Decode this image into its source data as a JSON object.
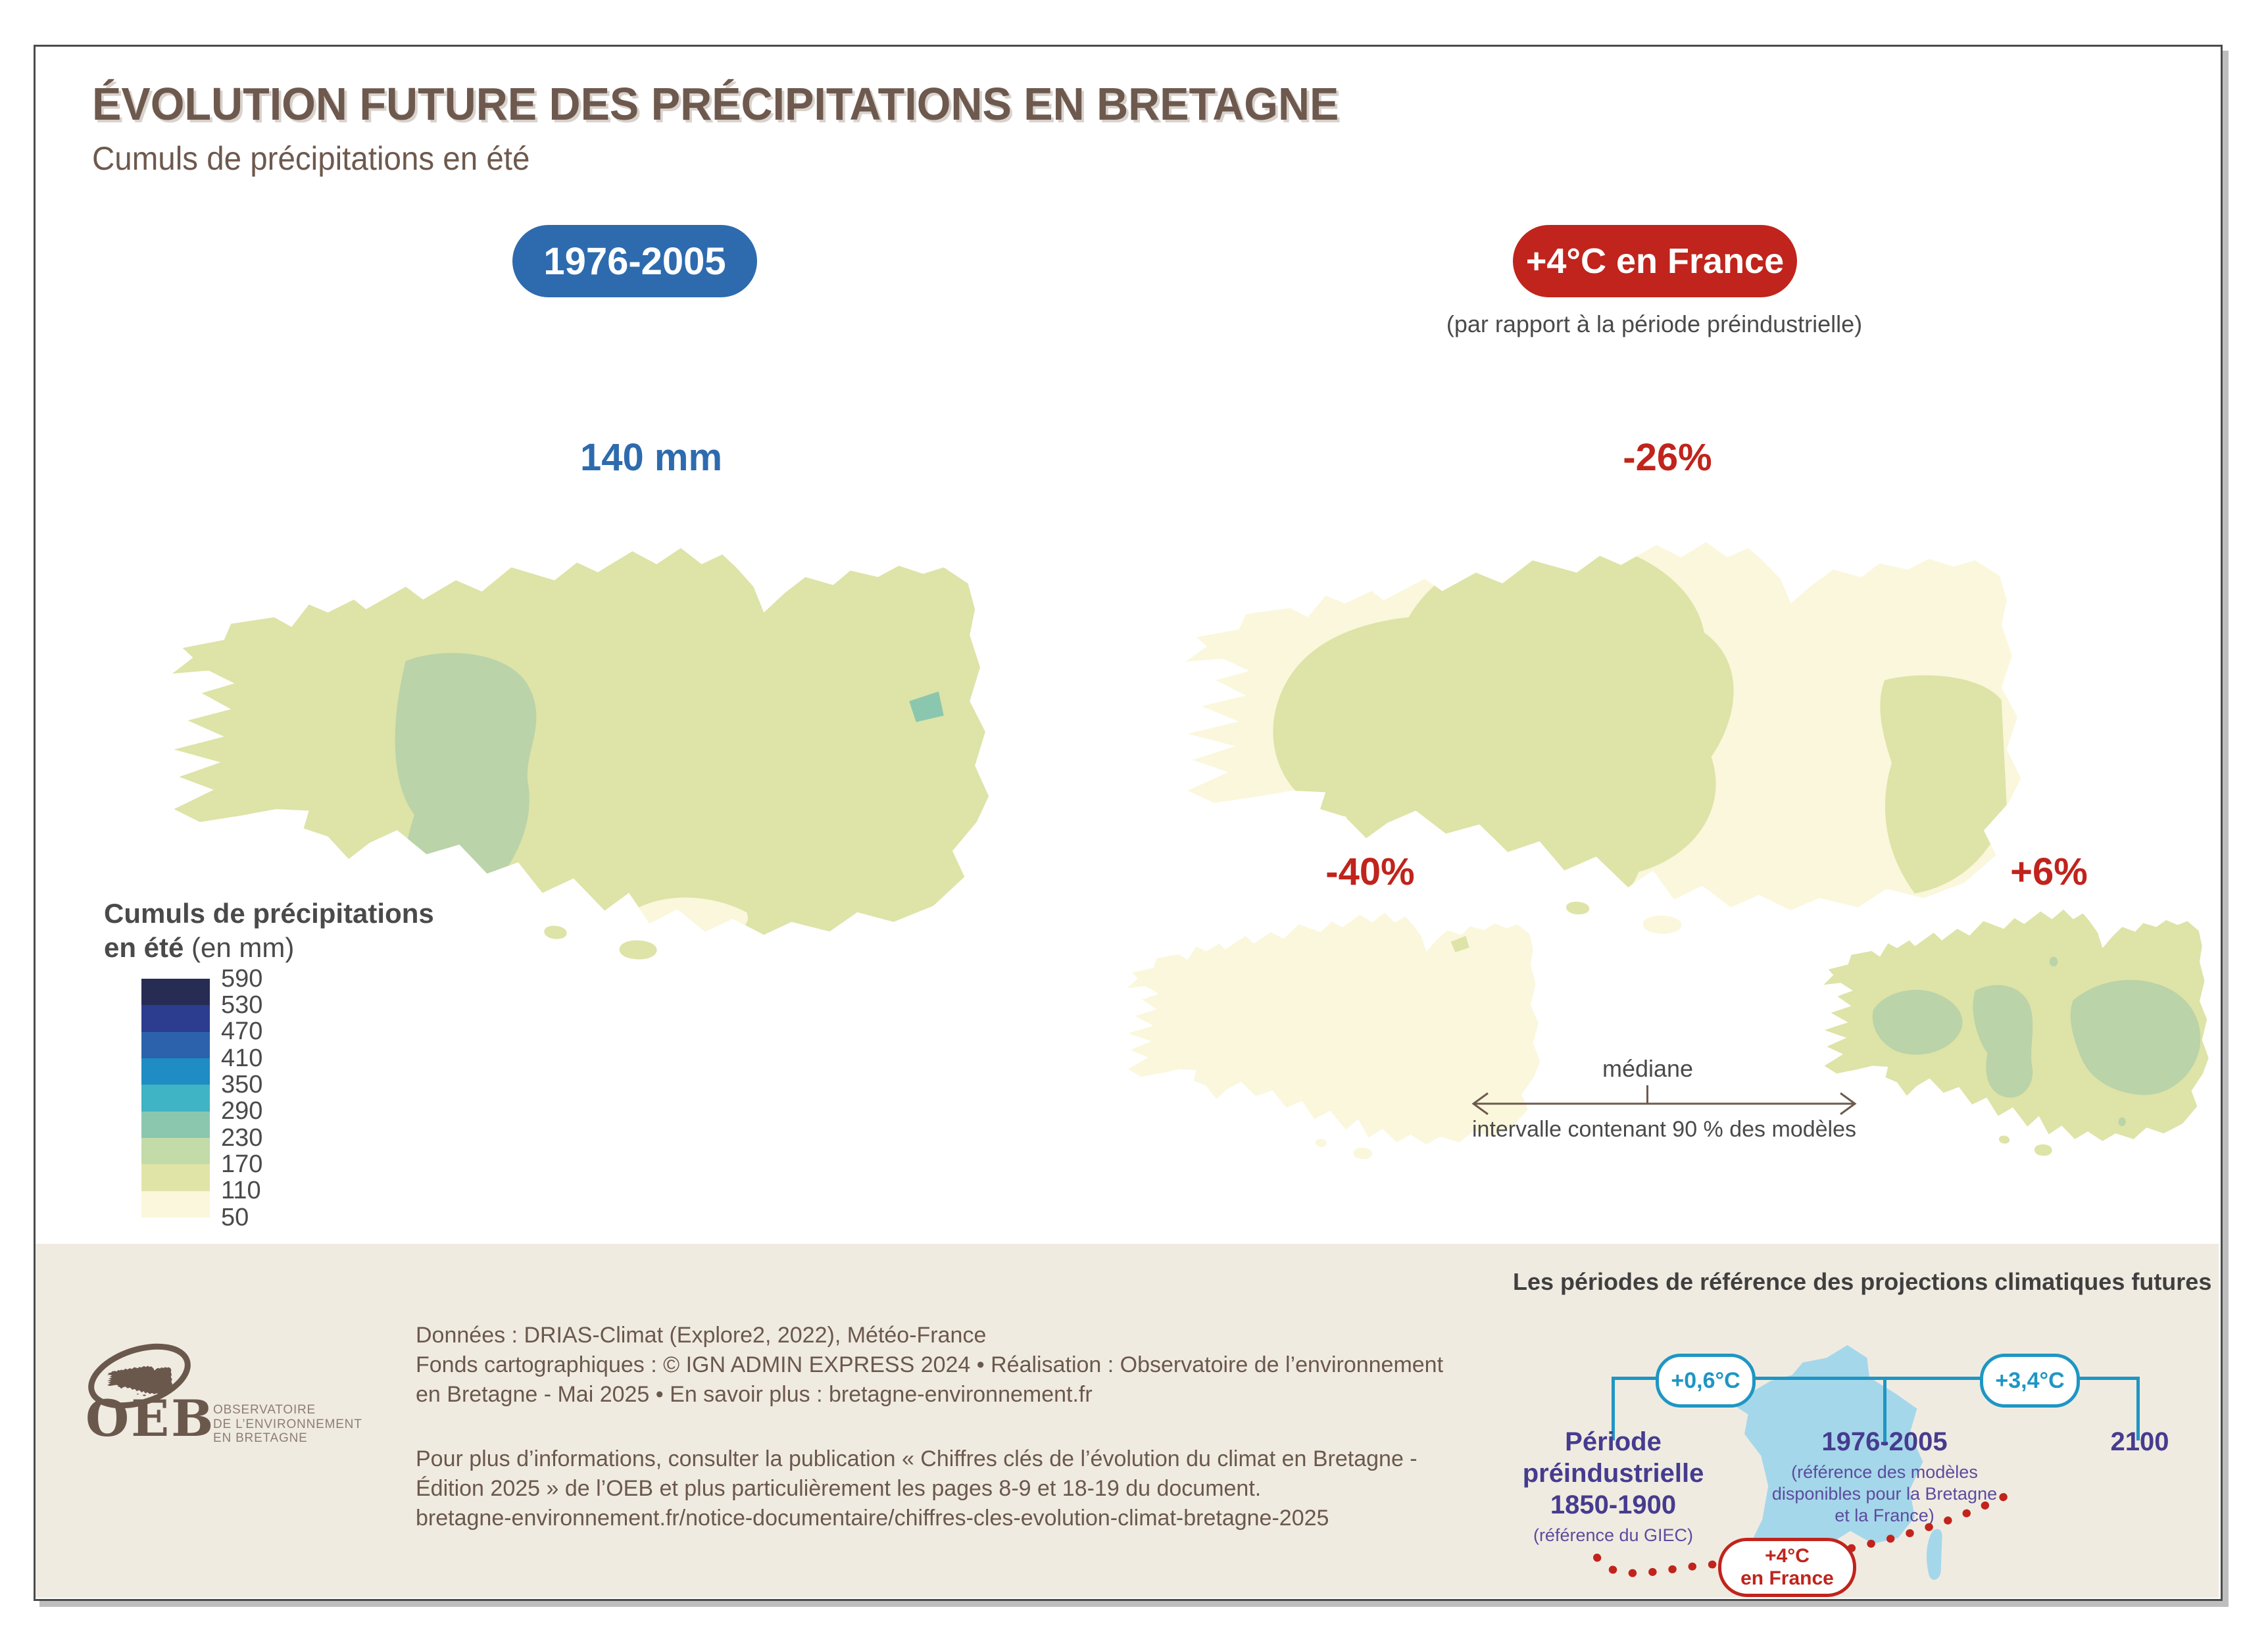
{
  "header": {
    "title": "ÉVOLUTION FUTURE DES PRÉCIPITATIONS EN BRETAGNE",
    "subtitle": "Cumuls de précipitations en été"
  },
  "badges": {
    "baseline_period": "1976-2005",
    "scenario": "+4°C en France",
    "scenario_note": "(par rapport à la période préindustrielle)"
  },
  "maps": {
    "baseline_value": "140 mm",
    "median_value": "-26%",
    "interval_low_value": "-40%",
    "interval_high_value": "+6%",
    "median_caption": "médiane",
    "interval_caption": "intervalle contenant 90 % des modèles"
  },
  "legend": {
    "title_line1": "Cumuls de précipitations",
    "title_line2_bold": "en été",
    "title_line2_unit": " (en mm)",
    "tick_labels": [
      "590",
      "530",
      "470",
      "410",
      "350",
      "290",
      "230",
      "170",
      "110",
      "50"
    ],
    "band_colors": [
      "#272C55",
      "#2C3C8E",
      "#2C62AC",
      "#1F8CC3",
      "#3FB4C4",
      "#8BC7AF",
      "#C3DAA9",
      "#E0E5A7",
      "#FAF7DC"
    ]
  },
  "footer": {
    "logo": {
      "acronym": "OEB",
      "caption_lines": [
        "OBSERVATOIRE",
        "DE L’ENVIRONNEMENT",
        "EN BRETAGNE"
      ]
    },
    "credit_lines": [
      "Données : DRIAS-Climat (Explore2, 2022), Météo-France",
      "Fonds cartographiques : © IGN ADMIN EXPRESS 2024 • Réalisation : Observatoire de l’environnement",
      "en Bretagne - Mai 2025  • En savoir plus : bretagne-environnement.fr"
    ],
    "info_lines": [
      "Pour plus d’informations, consulter la publication « Chiffres clés de l’évolution du climat en Bretagne -",
      "Édition 2025 » de l’OEB et plus particulièrement les pages 8-9 et 18-19 du document.",
      "bretagne-environnement.fr/notice-documentaire/chiffres-cles-evolution-climat-bretagne-2025"
    ]
  },
  "reference_diagram": {
    "title": "Les périodes de référence des projections climatiques futures",
    "delta_left": "+0,6°C",
    "delta_right": "+3,4°C",
    "period_left_lines": [
      "Période",
      "préindustrielle",
      "1850-1900"
    ],
    "period_left_note": "(référence du GIEC)",
    "period_mid": "1976-2005",
    "period_mid_note_lines": [
      "(référence des modèles",
      "disponibles pour la Bretagne",
      "et la France)"
    ],
    "period_right": "2100",
    "arc_badge_lines": [
      "+4°C",
      "en France"
    ]
  },
  "colors": {
    "accent-blue": "#2D6BAE",
    "accent-red": "#C0241C",
    "accent-cyan": "#1E96C4",
    "accent-purple": "#463C8E",
    "accent-purple-light": "#5C4B9E",
    "title-brown": "#6E594E",
    "text-gray": "#4A4A4A",
    "footer-bg": "#F0EBE1",
    "logo-brown": "#6B584C",
    "logo-gray": "#8D7E72",
    "france-blue": "#A5D7EA",
    "map-pale": "#FAF7DC",
    "map-yellowgreen": "#DEE3A7",
    "map-green": "#BAD3A9",
    "map-teal": "#8BC7AF"
  }
}
